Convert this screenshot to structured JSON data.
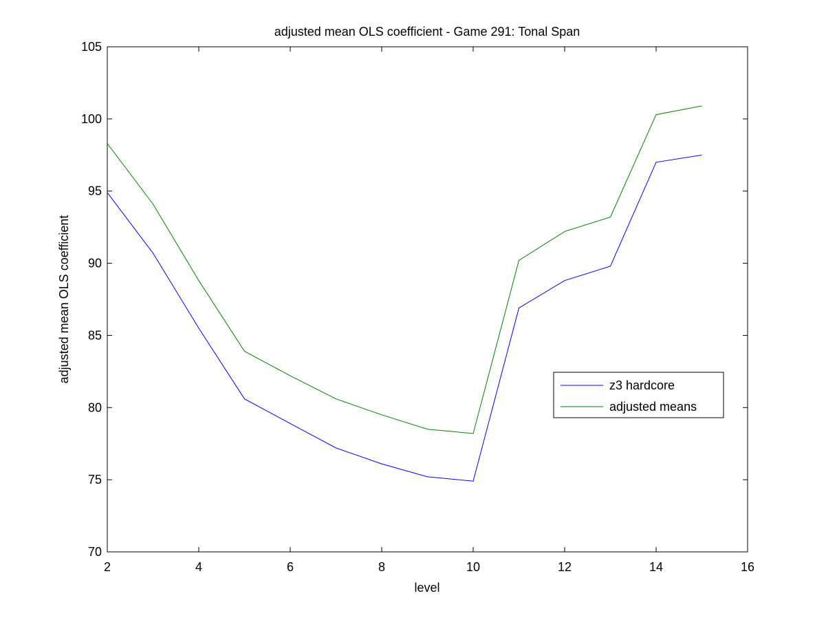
{
  "chart_data": {
    "type": "line",
    "title": "adjusted mean OLS coefficient - Game 291: Tonal Span",
    "xlabel": "level",
    "ylabel": "adjusted mean OLS coefficient",
    "xlim": [
      2,
      16
    ],
    "ylim": [
      70,
      105
    ],
    "xticks": [
      2,
      4,
      6,
      8,
      10,
      12,
      14,
      16
    ],
    "yticks": [
      70,
      75,
      80,
      85,
      90,
      95,
      100,
      105
    ],
    "grid": false,
    "legend_position": "right",
    "x": [
      2,
      3,
      4,
      5,
      6,
      7,
      8,
      9,
      10,
      11,
      12,
      13,
      14,
      15
    ],
    "series": [
      {
        "name": "z3 hardcore",
        "color": "#0000ff",
        "values": [
          94.9,
          90.7,
          85.5,
          80.6,
          78.9,
          77.2,
          76.1,
          75.2,
          74.9,
          86.9,
          88.8,
          89.8,
          97.0,
          97.5
        ]
      },
      {
        "name": "adjusted means",
        "color": "#008000",
        "values": [
          98.3,
          94.1,
          88.8,
          83.9,
          82.2,
          80.6,
          79.5,
          78.5,
          78.2,
          90.2,
          92.2,
          93.2,
          100.3,
          100.9
        ]
      }
    ]
  }
}
